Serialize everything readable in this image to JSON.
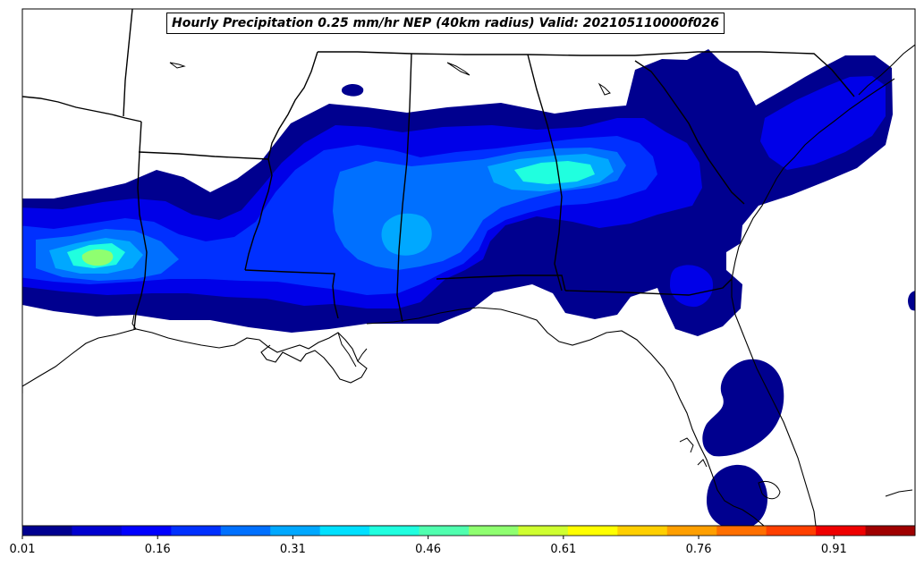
{
  "title": "Hourly Precipitation 0.25 mm/hr NEP (40km radius) Valid: 202105110000f026",
  "colorbar": {
    "min": 0.01,
    "max": 1.0,
    "tick_labels": [
      "0.01",
      "0.16",
      "0.31",
      "0.46",
      "0.61",
      "0.76",
      "0.91"
    ],
    "tick_values": [
      0.01,
      0.16,
      0.31,
      0.46,
      0.61,
      0.76,
      0.91
    ],
    "colors": [
      "#00008f",
      "#0000cf",
      "#0000ff",
      "#0030ff",
      "#0070ff",
      "#00a8ff",
      "#00e0ff",
      "#20ffdf",
      "#50ffaf",
      "#8fff70",
      "#cfff30",
      "#ffff00",
      "#ffcf00",
      "#ff9f00",
      "#ff6f00",
      "#ff3f00",
      "#ef0000",
      "#9f0000"
    ]
  },
  "map": {
    "region": "Southeastern United States",
    "features": [
      "state-borders",
      "coastline",
      "precipitation-probability-shading"
    ]
  }
}
